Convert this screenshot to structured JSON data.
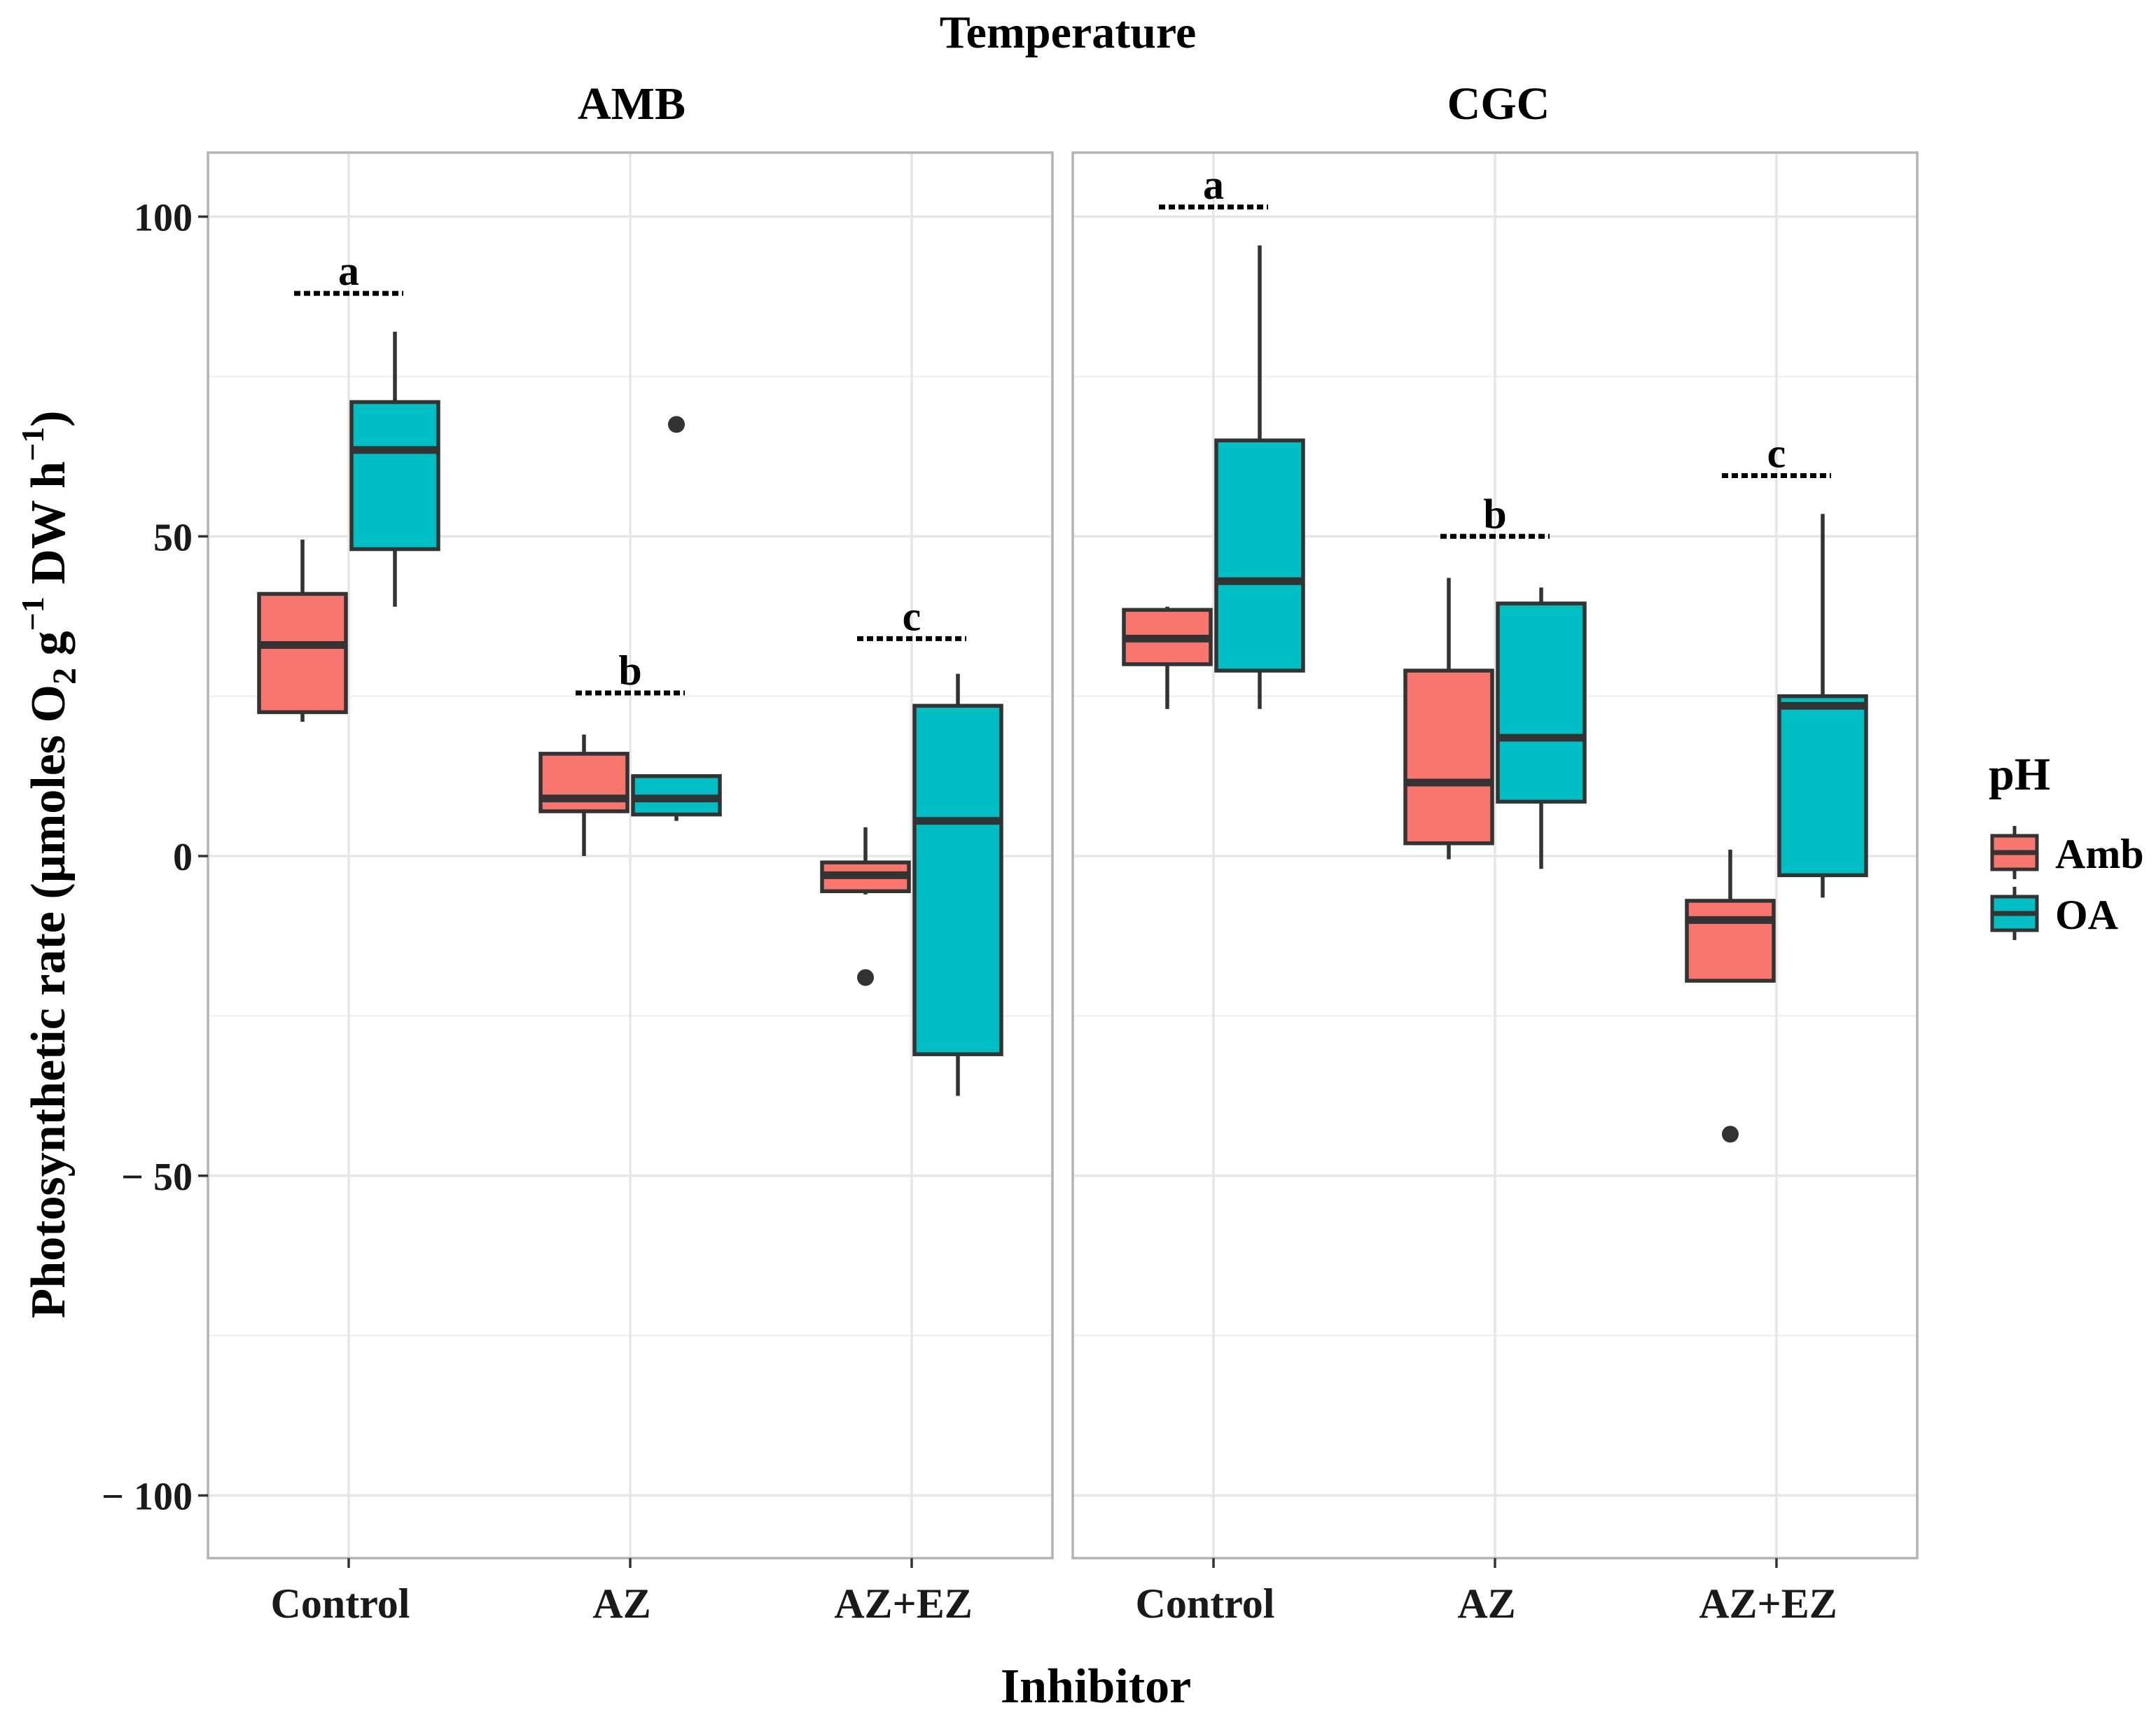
{
  "chart_data": {
    "type": "boxplot",
    "facet_title": "Temperature",
    "facets": [
      "AMB",
      "CGC"
    ],
    "xlabel": "Inhibitor",
    "ylabel": {
      "text1": "Photosynthetic rate (µmoles O",
      "sub": "2",
      "text2": " g",
      "sup1": "−1",
      "text3": " DW h",
      "sup2": "−1",
      "text4": ")"
    },
    "categories": [
      "Control",
      "AZ",
      "AZ+EZ"
    ],
    "ylim": [
      -110,
      110
    ],
    "yticks": [
      100,
      50,
      0,
      -50,
      -100
    ],
    "ytick_labels": [
      "100",
      "50",
      "0",
      "− 50",
      "− 100"
    ],
    "grid": true,
    "legend": {
      "title": "pH",
      "position": "right",
      "entries": [
        {
          "label": "Amb",
          "color": "#F8766D"
        },
        {
          "label": "OA",
          "color": "#00BFC4"
        }
      ]
    },
    "series": [
      {
        "facet": "AMB",
        "boxes": [
          {
            "category": "Control",
            "group": "Amb",
            "lower_whisker": 21,
            "q1": 22.5,
            "median": 33,
            "q3": 41,
            "upper_whisker": 49.5,
            "outliers": []
          },
          {
            "category": "Control",
            "group": "OA",
            "lower_whisker": 39,
            "q1": 48,
            "median": 63.5,
            "q3": 71,
            "upper_whisker": 82,
            "outliers": []
          },
          {
            "category": "AZ",
            "group": "Amb",
            "lower_whisker": 0,
            "q1": 7,
            "median": 9,
            "q3": 16,
            "upper_whisker": 19,
            "outliers": []
          },
          {
            "category": "AZ",
            "group": "OA",
            "lower_whisker": 5.5,
            "q1": 6.5,
            "median": 9,
            "q3": 12.5,
            "upper_whisker": 12.5,
            "outliers": [
              67.5
            ]
          },
          {
            "category": "AZ+EZ",
            "group": "Amb",
            "lower_whisker": -6,
            "q1": -5.5,
            "median": -3,
            "q3": -1,
            "upper_whisker": 4.5,
            "outliers": [
              -19
            ]
          },
          {
            "category": "AZ+EZ",
            "group": "OA",
            "lower_whisker": -37.5,
            "q1": -31,
            "median": 5.5,
            "q3": 23.5,
            "upper_whisker": 28.5,
            "outliers": []
          }
        ],
        "significance": [
          {
            "category": "Control",
            "label": "a",
            "y": 88
          },
          {
            "category": "AZ",
            "label": "b",
            "y": 25.5
          },
          {
            "category": "AZ+EZ",
            "label": "c",
            "y": 34
          }
        ]
      },
      {
        "facet": "CGC",
        "boxes": [
          {
            "category": "Control",
            "group": "Amb",
            "lower_whisker": 23,
            "q1": 30,
            "median": 34,
            "q3": 38.5,
            "upper_whisker": 39,
            "outliers": []
          },
          {
            "category": "Control",
            "group": "OA",
            "lower_whisker": 23,
            "q1": 29,
            "median": 43,
            "q3": 65,
            "upper_whisker": 95.5,
            "outliers": []
          },
          {
            "category": "AZ",
            "group": "Amb",
            "lower_whisker": -0.5,
            "q1": 2,
            "median": 11.5,
            "q3": 29,
            "upper_whisker": 43.5,
            "outliers": []
          },
          {
            "category": "AZ",
            "group": "OA",
            "lower_whisker": -2,
            "q1": 8.5,
            "median": 18.5,
            "q3": 39.5,
            "upper_whisker": 42,
            "outliers": []
          },
          {
            "category": "AZ+EZ",
            "group": "Amb",
            "lower_whisker": -19.5,
            "q1": -19.5,
            "median": -10,
            "q3": -7,
            "upper_whisker": 1,
            "outliers": [
              -43.5
            ]
          },
          {
            "category": "AZ+EZ",
            "group": "OA",
            "lower_whisker": -6.5,
            "q1": -3,
            "median": 23.5,
            "q3": 25,
            "upper_whisker": 53.5,
            "outliers": []
          }
        ],
        "significance": [
          {
            "category": "Control",
            "label": "a",
            "y": 101.5
          },
          {
            "category": "AZ",
            "label": "b",
            "y": 50
          },
          {
            "category": "AZ+EZ",
            "label": "c",
            "y": 59.5
          }
        ]
      }
    ]
  }
}
